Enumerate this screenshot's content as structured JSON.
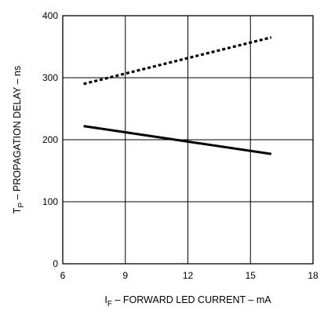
{
  "chart_data": {
    "type": "line",
    "title": "",
    "xlabel": {
      "main": "I",
      "sub": "F",
      "rest": " – FORWARD LED CURRENT – mA"
    },
    "ylabel": {
      "main": "T",
      "sub": "P",
      "rest": " – PROPAGATION DELAY – ns"
    },
    "xlim": [
      6,
      18
    ],
    "ylim": [
      0,
      400
    ],
    "x_ticks": [
      6,
      9,
      12,
      15,
      18
    ],
    "y_ticks": [
      0,
      100,
      200,
      300,
      400
    ],
    "grid": true,
    "series": [
      {
        "style": "dotted",
        "x": [
          7,
          16
        ],
        "y": [
          290,
          365
        ]
      },
      {
        "style": "solid",
        "x": [
          7,
          16
        ],
        "y": [
          222,
          177
        ]
      }
    ]
  }
}
